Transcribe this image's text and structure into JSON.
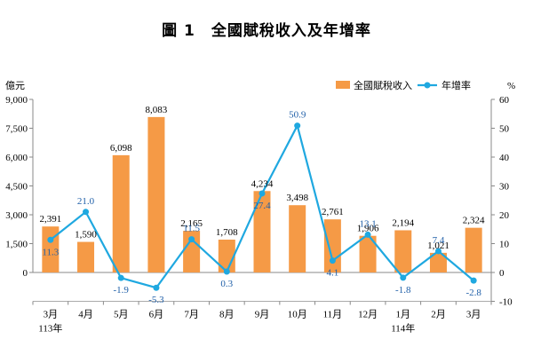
{
  "chart_data": {
    "type": "bar",
    "title": "圖 1　全國賦稅收入及年增率",
    "y_left_unit": "億元",
    "y_right_unit": "%",
    "categories": [
      "3月",
      "4月",
      "5月",
      "6月",
      "7月",
      "8月",
      "9月",
      "10月",
      "11月",
      "12月",
      "1月",
      "2月",
      "3月"
    ],
    "year_labels": [
      {
        "category_index": 0,
        "text": "113年"
      },
      {
        "category_index": 10,
        "text": "114年"
      }
    ],
    "series": [
      {
        "name": "全國賦稅收入",
        "type": "bar",
        "axis": "left",
        "color": "#F59A46",
        "values": [
          2391,
          1590,
          6098,
          8083,
          2165,
          1708,
          4234,
          3498,
          2761,
          1906,
          2194,
          1021,
          2324
        ],
        "labels": [
          "2,391",
          "1,590",
          "6,098",
          "8,083",
          "2,165",
          "1,708",
          "4,234",
          "3,498",
          "2,761",
          "1,906",
          "2,194",
          "1,021",
          "2,324"
        ]
      },
      {
        "name": "年增率",
        "type": "line",
        "axis": "right",
        "color": "#1FA8E0",
        "values": [
          11.3,
          21.0,
          -1.9,
          -5.3,
          11.5,
          0.3,
          27.4,
          50.9,
          4.1,
          13.1,
          -1.8,
          7.4,
          -2.8
        ],
        "labels": [
          "11.3",
          "21.0",
          "-1.9",
          "-5.3",
          "11.5",
          "0.3",
          "27.4",
          "50.9",
          "4.1",
          "13.1",
          "-1.8",
          "7.4",
          "-2.8"
        ]
      }
    ],
    "y_left": {
      "min": 0,
      "max": 9000,
      "ticks": [
        0,
        1500,
        3000,
        4500,
        6000,
        7500,
        9000
      ],
      "tick_labels": [
        "0",
        "1,500",
        "3,000",
        "4,500",
        "6,000",
        "7,500",
        "9,000"
      ]
    },
    "y_right": {
      "min": -10,
      "max": 60,
      "ticks": [
        -10,
        0,
        10,
        20,
        30,
        40,
        50,
        60
      ],
      "tick_labels": [
        "-10",
        "0",
        "10",
        "20",
        "30",
        "40",
        "50",
        "60"
      ]
    },
    "legend_position": "top-right",
    "grid": false
  }
}
